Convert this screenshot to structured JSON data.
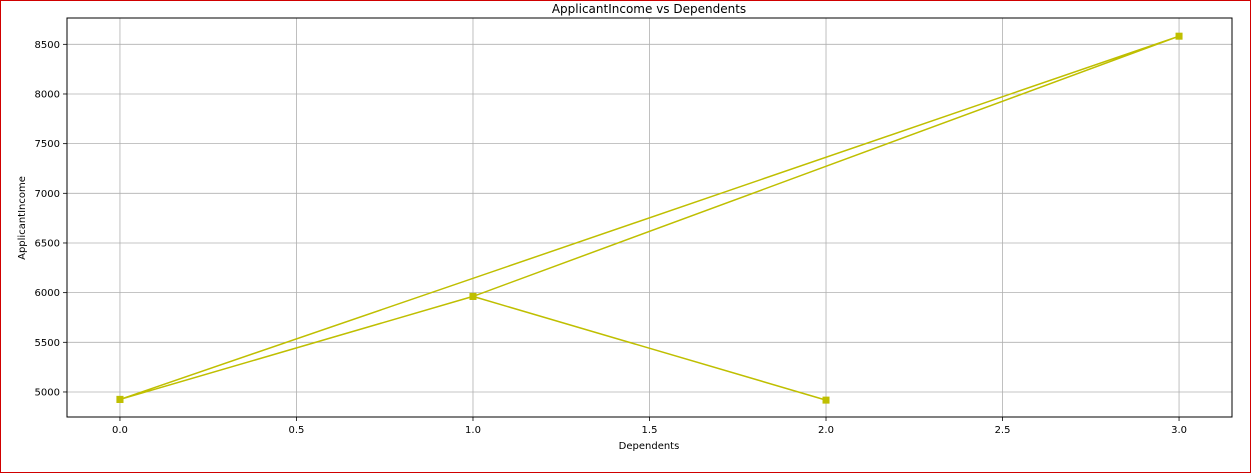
{
  "chart_data": {
    "type": "line",
    "title": "ApplicantIncome vs Dependents",
    "xlabel": "Dependents",
    "ylabel": "ApplicantIncome",
    "x": [
      0,
      1,
      3,
      0,
      1,
      2
    ],
    "y": [
      4925,
      5962,
      8582,
      4925,
      5962,
      4918
    ],
    "x_ticks": [
      {
        "value": 0.0,
        "label": "0.0"
      },
      {
        "value": 0.5,
        "label": "0.5"
      },
      {
        "value": 1.0,
        "label": "1.0"
      },
      {
        "value": 1.5,
        "label": "1.5"
      },
      {
        "value": 2.0,
        "label": "2.0"
      },
      {
        "value": 2.5,
        "label": "2.5"
      },
      {
        "value": 3.0,
        "label": "3.0"
      }
    ],
    "y_ticks": [
      {
        "value": 5000,
        "label": "5000"
      },
      {
        "value": 5500,
        "label": "5500"
      },
      {
        "value": 6000,
        "label": "6000"
      },
      {
        "value": 6500,
        "label": "6500"
      },
      {
        "value": 7000,
        "label": "7000"
      },
      {
        "value": 7500,
        "label": "7500"
      },
      {
        "value": 8000,
        "label": "8000"
      },
      {
        "value": 8500,
        "label": "8500"
      }
    ],
    "xlim": [
      -0.15,
      3.15
    ],
    "ylim": [
      4748,
      8765
    ],
    "grid": true,
    "marker": "square",
    "color": "#bfbf00"
  }
}
